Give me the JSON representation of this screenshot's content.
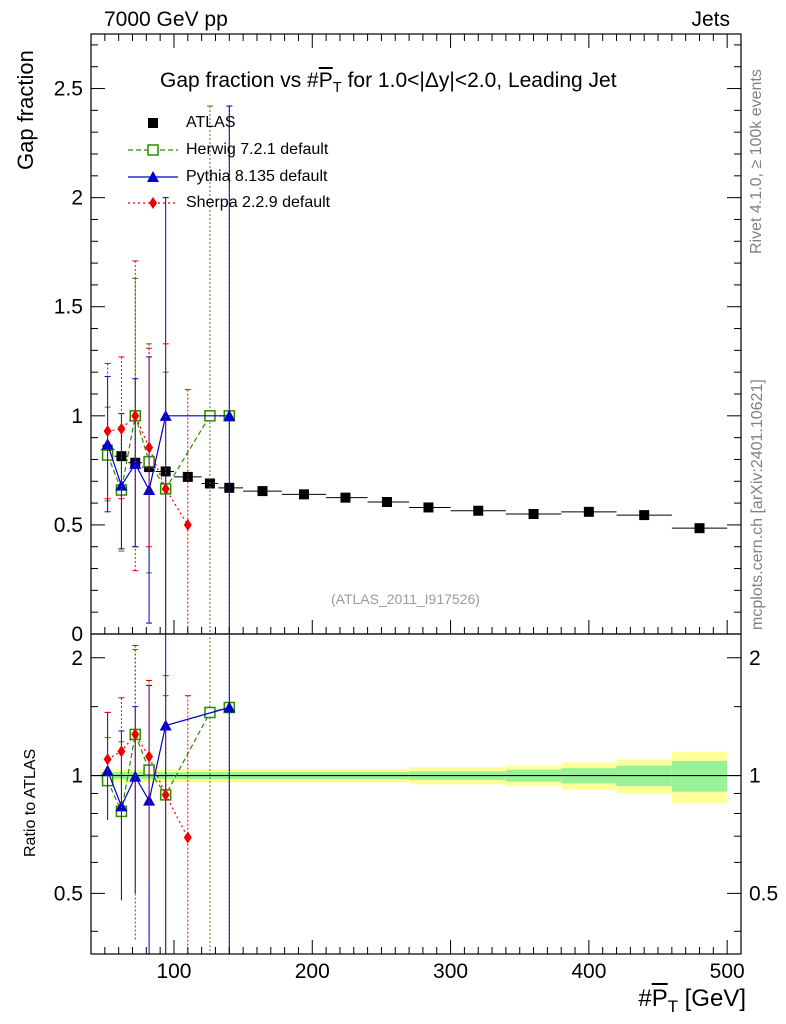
{
  "header": {
    "left": "7000 GeV pp",
    "right": "Jets"
  },
  "title": {
    "prefix": "Gap fraction vs #",
    "pt": "P",
    "sub": "T",
    "suffix": " for 1.0<|Δy|<2.0, Leading Jet"
  },
  "ylabel_top": "Gap fraction",
  "ylabel_bottom": "Ratio to ATLAS",
  "xlabel": {
    "prefix": "#",
    "pt": "P",
    "sub": "T",
    "suffix": " [GeV]"
  },
  "side_text": {
    "rivet": "Rivet 4.1.0, ≥ 100k events",
    "mcplots": "mcplots.cern.ch [arXiv:2401.10621]"
  },
  "ref_label": "(ATLAS_2011_I917526)",
  "legend": [
    {
      "label": "ATLAS",
      "color": "#000000"
    },
    {
      "label": "Herwig 7.2.1 default",
      "color": "#2e8b00"
    },
    {
      "label": "Pythia 8.135 default",
      "color": "#0000cc"
    },
    {
      "label": "Sherpa 2.2.9 default",
      "color": "#ee0000"
    }
  ],
  "colors": {
    "atlas": "#000000",
    "herwig": "#2e8b00",
    "pythia": "#0000cc",
    "sherpa": "#ee0000",
    "band_inner": "#99f299",
    "band_outer": "#ffff99"
  },
  "chart_data": {
    "type": "scatter",
    "x_axis": {
      "label": "#P_T [GeV]",
      "range": [
        40,
        510
      ],
      "ticks": [
        100,
        200,
        300,
        400,
        500
      ]
    },
    "top_panel": {
      "ylabel": "Gap fraction",
      "range": [
        0,
        2.75
      ],
      "ticks": [
        0,
        0.5,
        1,
        1.5,
        2,
        2.5
      ]
    },
    "ratio_panel": {
      "ylabel": "Ratio to ATLAS",
      "range": [
        0.35,
        2.3
      ],
      "scale": "log",
      "ticks": [
        0.5,
        1,
        2
      ]
    },
    "atlas": [
      {
        "x": 52,
        "y": 0.845,
        "xlo": 47,
        "xhi": 57,
        "err": 0.01
      },
      {
        "x": 62,
        "y": 0.815,
        "xlo": 57,
        "xhi": 67,
        "err": 0.01
      },
      {
        "x": 72,
        "y": 0.785,
        "xlo": 67,
        "xhi": 77,
        "err": 0.01
      },
      {
        "x": 82,
        "y": 0.765,
        "xlo": 77,
        "xhi": 87,
        "err": 0.01
      },
      {
        "x": 94,
        "y": 0.745,
        "xlo": 87,
        "xhi": 100,
        "err": 0.01
      },
      {
        "x": 110,
        "y": 0.72,
        "xlo": 100,
        "xhi": 120,
        "err": 0.01
      },
      {
        "x": 126,
        "y": 0.69,
        "xlo": 120,
        "xhi": 132,
        "err": 0.01
      },
      {
        "x": 140,
        "y": 0.67,
        "xlo": 132,
        "xhi": 150,
        "err": 0.01
      },
      {
        "x": 164,
        "y": 0.655,
        "xlo": 150,
        "xhi": 178,
        "err": 0.01
      },
      {
        "x": 194,
        "y": 0.64,
        "xlo": 178,
        "xhi": 210,
        "err": 0.01
      },
      {
        "x": 224,
        "y": 0.625,
        "xlo": 210,
        "xhi": 240,
        "err": 0.01
      },
      {
        "x": 254,
        "y": 0.605,
        "xlo": 240,
        "xhi": 270,
        "err": 0.01
      },
      {
        "x": 284,
        "y": 0.58,
        "xlo": 270,
        "xhi": 300,
        "err": 0.01
      },
      {
        "x": 320,
        "y": 0.565,
        "xlo": 300,
        "xhi": 340,
        "err": 0.01
      },
      {
        "x": 360,
        "y": 0.55,
        "xlo": 340,
        "xhi": 380,
        "err": 0.01
      },
      {
        "x": 400,
        "y": 0.56,
        "xlo": 380,
        "xhi": 420,
        "err": 0.01
      },
      {
        "x": 440,
        "y": 0.545,
        "xlo": 420,
        "xhi": 460,
        "err": 0.01
      },
      {
        "x": 480,
        "y": 0.485,
        "xlo": 460,
        "xhi": 500,
        "err": 0.01
      }
    ],
    "band": [
      {
        "xlo": 47,
        "xhi": 100,
        "inner": 0.02,
        "outer": 0.04
      },
      {
        "xlo": 100,
        "xhi": 150,
        "inner": 0.02,
        "outer": 0.04
      },
      {
        "xlo": 150,
        "xhi": 210,
        "inner": 0.02,
        "outer": 0.04
      },
      {
        "xlo": 210,
        "xhi": 270,
        "inner": 0.02,
        "outer": 0.04
      },
      {
        "xlo": 270,
        "xhi": 340,
        "inner": 0.025,
        "outer": 0.05
      },
      {
        "xlo": 340,
        "xhi": 380,
        "inner": 0.035,
        "outer": 0.06
      },
      {
        "xlo": 380,
        "xhi": 420,
        "inner": 0.045,
        "outer": 0.08
      },
      {
        "xlo": 420,
        "xhi": 460,
        "inner": 0.06,
        "outer": 0.1
      },
      {
        "xlo": 460,
        "xhi": 500,
        "inner": 0.09,
        "outer": 0.15
      }
    ],
    "herwig": [
      {
        "x": 52,
        "y": 0.82,
        "lo": 0.61,
        "hi": 1.04,
        "rlo": 0.78,
        "rhi": 1.25
      },
      {
        "x": 62,
        "y": 0.66,
        "lo": 0.38,
        "hi": 0.95,
        "rlo": 0.5,
        "rhi": 1.22
      },
      {
        "x": 72,
        "y": 1.0,
        "lo": 0.4,
        "hi": 1.63,
        "rlo": 0.5,
        "rhi": 2.1
      },
      {
        "x": 82,
        "y": 0.79,
        "lo": 0.28,
        "hi": 1.33,
        "rlo": 0.38,
        "rhi": 1.75
      },
      {
        "x": 94,
        "y": 0.665,
        "lo": 0.0,
        "hi": 1.2,
        "rlo": 0.3,
        "rhi": 1.6
      },
      {
        "x": 126,
        "y": 1.0,
        "lo": 0.0,
        "hi": 2.42,
        "rlo": 0.3,
        "rhi": 2.6
      },
      {
        "x": 140,
        "y": 1.0,
        "lo": 0.0,
        "hi": 2.42,
        "rlo": 0.3,
        "rhi": 2.6
      }
    ],
    "pythia": [
      {
        "x": 52,
        "y": 0.87,
        "lo": 0.56,
        "hi": 1.18,
        "rlo": 0.77,
        "rhi": 1.45
      },
      {
        "x": 62,
        "y": 0.68,
        "lo": 0.39,
        "hi": 1.01,
        "rlo": 0.48,
        "rhi": 1.3
      },
      {
        "x": 72,
        "y": 0.78,
        "lo": 0.4,
        "hi": 1.17,
        "rlo": 0.5,
        "rhi": 1.5
      },
      {
        "x": 82,
        "y": 0.66,
        "lo": 0.05,
        "hi": 1.27,
        "rlo": 0.3,
        "rhi": 1.7
      },
      {
        "x": 94,
        "y": 1.0,
        "lo": 0.0,
        "hi": 2.0,
        "rlo": 0.3,
        "rhi": 2.6
      },
      {
        "x": 140,
        "y": 1.0,
        "lo": 0.0,
        "hi": 2.42,
        "rlo": 0.3,
        "rhi": 2.6
      }
    ],
    "sherpa": [
      {
        "x": 52,
        "y": 0.93,
        "lo": 0.62,
        "hi": 1.24,
        "rlo": 0.78,
        "rhi": 1.45
      },
      {
        "x": 62,
        "y": 0.94,
        "lo": 0.62,
        "hi": 1.27,
        "rlo": 0.76,
        "rhi": 1.58
      },
      {
        "x": 72,
        "y": 1.0,
        "lo": 0.29,
        "hi": 1.71,
        "rlo": 0.38,
        "rhi": 2.15
      },
      {
        "x": 82,
        "y": 0.855,
        "lo": 0.4,
        "hi": 1.31,
        "rlo": 0.53,
        "rhi": 1.75
      },
      {
        "x": 94,
        "y": 0.665,
        "lo": 0.0,
        "hi": 1.33,
        "rlo": 0.3,
        "rhi": 1.8
      },
      {
        "x": 110,
        "y": 0.5,
        "lo": 0.0,
        "hi": 1.12,
        "rlo": 0.3,
        "rhi": 1.6
      }
    ]
  }
}
